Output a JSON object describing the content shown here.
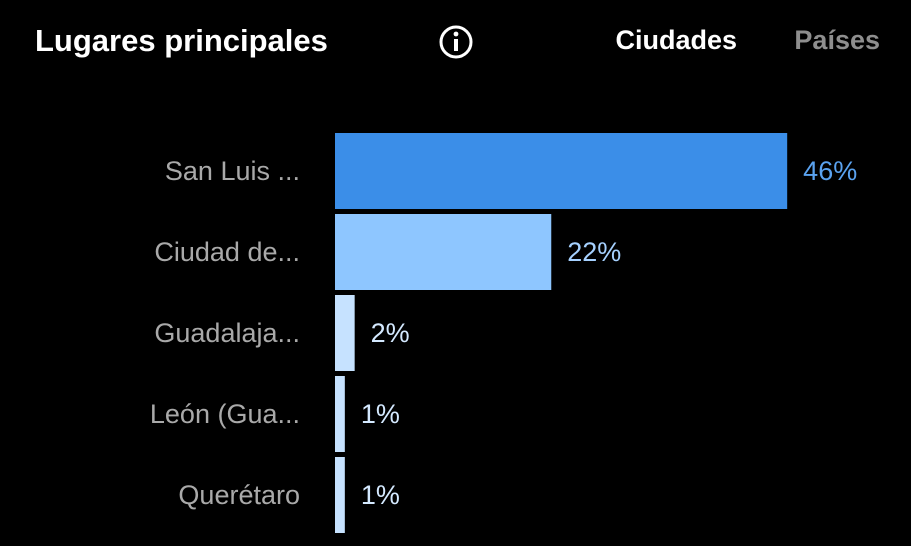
{
  "chart_data": {
    "type": "bar",
    "title": "Lugares principales",
    "tabs": [
      "Ciudades",
      "Países"
    ],
    "categories": [
      "San Luis ...",
      "Ciudad de...",
      "Guadalaja...",
      "León (Gua...",
      "Querétaro"
    ],
    "values": [
      46,
      22,
      2,
      1,
      1
    ],
    "value_labels": [
      "46%",
      "22%",
      "2%",
      "1%",
      "1%"
    ],
    "colors": [
      "#3b8ee8",
      "#8ec6ff",
      "#c6e2ff",
      "#c6e2ff",
      "#c6e2ff"
    ],
    "orientation": "horizontal"
  }
}
